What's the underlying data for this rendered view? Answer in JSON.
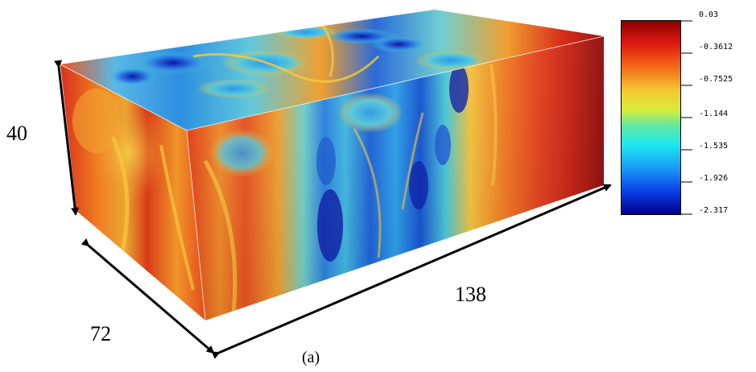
{
  "dimensions": {
    "height": "40",
    "depth": "72",
    "length": "138"
  },
  "caption": "(a)",
  "colorbar": {
    "tick_labels": [
      "0.03",
      "-0.3612",
      "-0.7525",
      "-1.144",
      "-1.535",
      "-1.926",
      "-2.317"
    ],
    "colormap": "jet",
    "max_color": "#8b0000",
    "min_color": "#00008b"
  },
  "colors": {
    "dark_red": "#8b0a0a",
    "red": "#d92d17",
    "orange": "#f0781e",
    "yellow": "#f4c83a",
    "cyan": "#3fc7d9",
    "light_blue": "#36a6e6",
    "blue": "#1457cf",
    "dark_blue": "#0a149a"
  }
}
